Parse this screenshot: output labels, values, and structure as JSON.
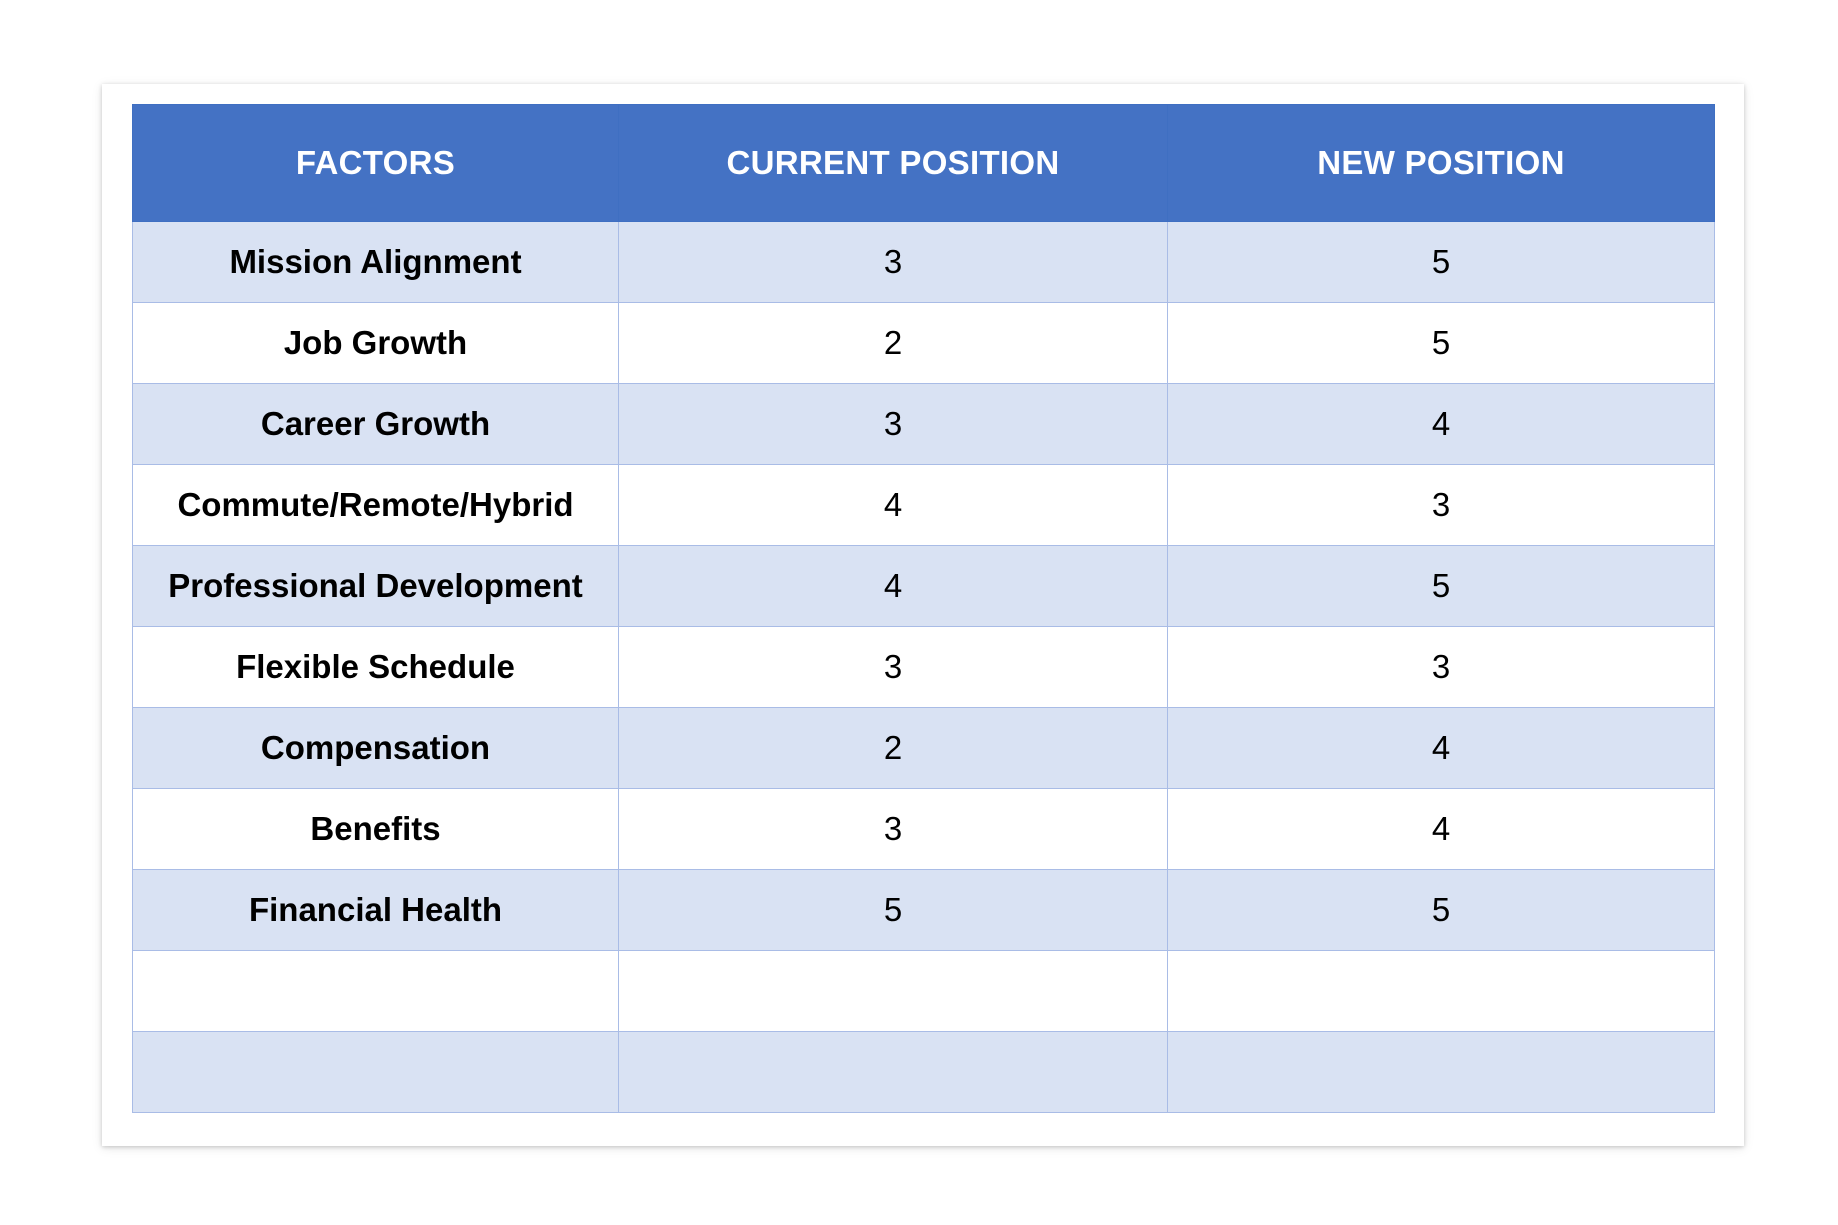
{
  "colors": {
    "header_bg": "#4472c4",
    "header_text": "#ffffff",
    "shaded_row": "#d9e2f3",
    "plain_row": "#ffffff",
    "grid_line": "#a9bce6"
  },
  "table": {
    "headers": [
      "FACTORS",
      "CURRENT POSITION",
      "NEW POSITION"
    ],
    "rows": [
      [
        "Mission Alignment",
        "3",
        "5"
      ],
      [
        "Job Growth",
        "2",
        "5"
      ],
      [
        "Career Growth",
        "3",
        "4"
      ],
      [
        "Commute/Remote/Hybrid",
        "4",
        "3"
      ],
      [
        "Professional Development",
        "4",
        "5"
      ],
      [
        "Flexible Schedule",
        "3",
        "3"
      ],
      [
        "Compensation",
        "2",
        "4"
      ],
      [
        "Benefits",
        "3",
        "4"
      ],
      [
        "Financial Health",
        "5",
        "5"
      ],
      [
        "",
        "",
        ""
      ],
      [
        "",
        "",
        ""
      ]
    ]
  }
}
